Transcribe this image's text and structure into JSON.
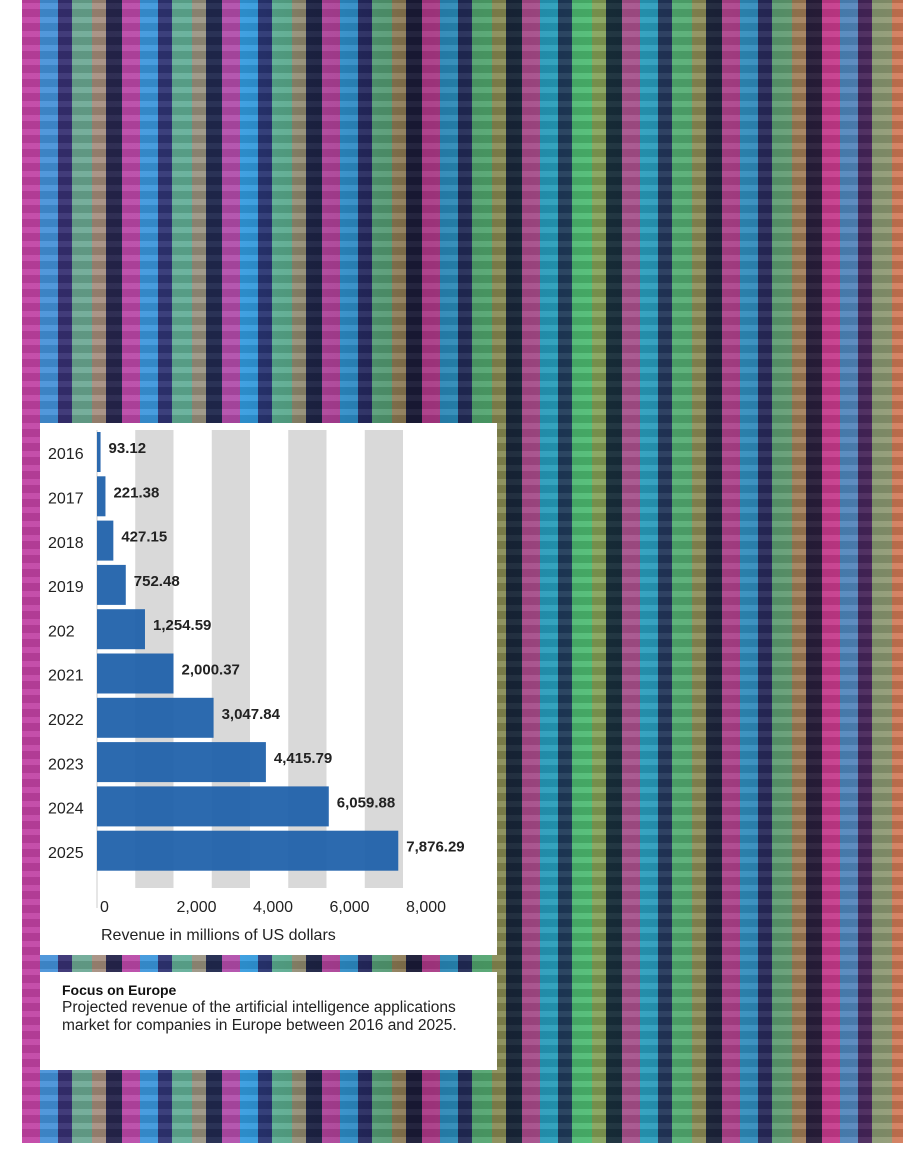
{
  "chart_data": {
    "type": "bar",
    "orientation": "horizontal",
    "x_label": "Revenue in millions of US dollars",
    "categories": [
      "2016",
      "2017",
      "2018",
      "2019",
      "202",
      "2021",
      "2022",
      "2023",
      "2024",
      "2025"
    ],
    "values": [
      93.12,
      221.38,
      427.15,
      752.48,
      1254.59,
      2000.37,
      3047.84,
      4415.79,
      6059.88,
      7876.29
    ],
    "value_labels": [
      "93.12",
      "221.38",
      "427.15",
      "752.48",
      "1,254.59",
      "2,000.37",
      "3,047.84",
      "4,415.79",
      "6,059.88",
      "7,876.29"
    ],
    "color": "#2162ab",
    "xlim": [
      0,
      8000
    ],
    "xticks": [
      0,
      {
        "value": 2000,
        "label": "2,000"
      },
      {
        "value": 4000,
        "label": "4,000"
      },
      {
        "value": 6000,
        "label": "6,000"
      },
      {
        "value": 8000,
        "label": "8,000"
      }
    ],
    "grid": true
  },
  "caption": {
    "title": "Focus on Europe",
    "text": "Projected revenue of the artificial intelligence applications market for companies in Europe between 2016 and 2025."
  }
}
